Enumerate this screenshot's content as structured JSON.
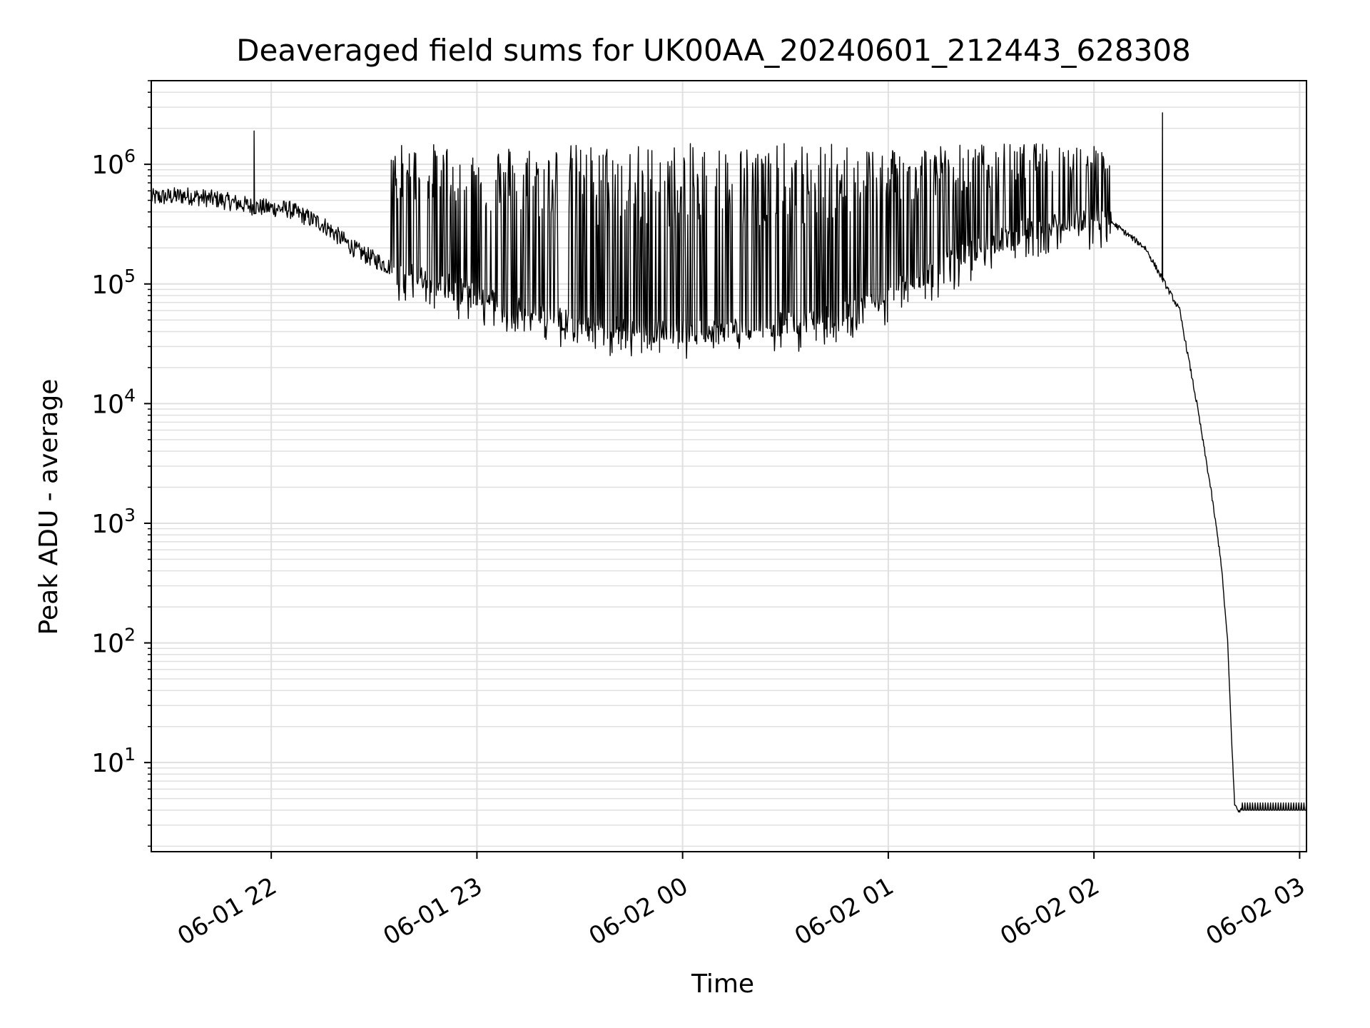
{
  "chart_data": {
    "type": "line",
    "title": "Deaveraged field sums for UK00AA_20240601_212443_628308",
    "xlabel": "Time",
    "ylabel": "Peak ADU - average",
    "yscale": "log",
    "ylim": [
      1.8,
      5000000
    ],
    "xlim": [
      "2024-06-01 21:25",
      "2024-06-02 03:02"
    ],
    "grid": true,
    "line_color": "#000000",
    "x_ticks": [
      {
        "value": "2024-06-01 22:00",
        "label": "06-01 22"
      },
      {
        "value": "2024-06-01 23:00",
        "label": "06-01 23"
      },
      {
        "value": "2024-06-02 00:00",
        "label": "06-02 00"
      },
      {
        "value": "2024-06-02 01:00",
        "label": "06-02 01"
      },
      {
        "value": "2024-06-02 02:00",
        "label": "06-02 02"
      },
      {
        "value": "2024-06-02 03:00",
        "label": "06-02 03"
      }
    ],
    "y_ticks": [
      {
        "value": 10,
        "base": "10",
        "exp": "1"
      },
      {
        "value": 100,
        "base": "10",
        "exp": "2"
      },
      {
        "value": 1000,
        "base": "10",
        "exp": "3"
      },
      {
        "value": 10000,
        "base": "10",
        "exp": "4"
      },
      {
        "value": 100000,
        "base": "10",
        "exp": "5"
      },
      {
        "value": 1000000,
        "base": "10",
        "exp": "6"
      }
    ],
    "series": [
      {
        "baseline": {
          "x": [
            "2024-06-01 21:25",
            "2024-06-01 21:35",
            "2024-06-01 21:45",
            "2024-06-01 21:55",
            "2024-06-01 22:05",
            "2024-06-01 22:15",
            "2024-06-01 22:25",
            "2024-06-01 22:35",
            "2024-06-01 22:45",
            "2024-06-01 22:55",
            "2024-06-01 23:05",
            "2024-06-01 23:15",
            "2024-06-01 23:25",
            "2024-06-01 23:35",
            "2024-06-01 23:45",
            "2024-06-01 23:55",
            "2024-06-02 00:05",
            "2024-06-02 00:15",
            "2024-06-02 00:25",
            "2024-06-02 00:35",
            "2024-06-02 00:45",
            "2024-06-02 00:55",
            "2024-06-02 01:05",
            "2024-06-02 01:15",
            "2024-06-02 01:25",
            "2024-06-02 01:35",
            "2024-06-02 01:45",
            "2024-06-02 01:55",
            "2024-06-02 02:05",
            "2024-06-02 02:15",
            "2024-06-02 02:25",
            "2024-06-02 02:30",
            "2024-06-02 02:34",
            "2024-06-02 02:37",
            "2024-06-02 02:39",
            "2024-06-02 02:40",
            "2024-06-02 02:41",
            "2024-06-02 02:42",
            "2024-06-02 02:43",
            "2024-06-02 03:02"
          ],
          "y": [
            500000,
            520000,
            480000,
            420000,
            400000,
            300000,
            180000,
            130000,
            110000,
            90000,
            75000,
            60000,
            50000,
            45000,
            42000,
            40000,
            40000,
            42000,
            45000,
            48000,
            55000,
            70000,
            100000,
            140000,
            190000,
            250000,
            310000,
            350000,
            330000,
            200000,
            60000,
            10000,
            2000,
            500,
            100,
            20,
            4.5,
            4,
            4,
            4
          ]
        },
        "spikes": {
          "x_range": [
            "2024-06-01 22:35",
            "2024-06-02 02:05"
          ],
          "peak_y": 1500000
        },
        "notable_spikes": [
          {
            "x": "2024-06-01 21:55",
            "y": 1900000
          },
          {
            "x": "2024-06-02 02:20",
            "y": 2700000
          }
        ]
      }
    ]
  }
}
